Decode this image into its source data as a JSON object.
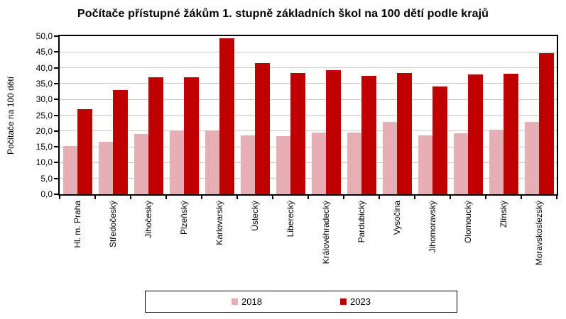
{
  "chart_data": {
    "type": "bar",
    "title": "Počítače přístupné žákům 1. stupně základních škol na 100 dětí podle krajů",
    "ylabel": "Počítače na 100 dětí",
    "xlabel": "",
    "categories": [
      "Hl. m. Praha",
      "Středočeský",
      "Jihočeský",
      "Plzeňský",
      "Karlovarský",
      "Ústecký",
      "Liberecký",
      "Královéhradecký",
      "Pardubický",
      "Vysočina",
      "Jihomoravský",
      "Olomoucký",
      "Zlínský",
      "Moravskoslezský"
    ],
    "series": [
      {
        "name": "2018",
        "color": "#E6AEB5",
        "values": [
          15.3,
          16.5,
          19.0,
          20.2,
          20.1,
          18.7,
          18.3,
          19.5,
          19.4,
          22.8,
          18.7,
          19.3,
          20.5,
          22.8
        ]
      },
      {
        "name": "2023",
        "color": "#C00000",
        "values": [
          27.0,
          32.9,
          37.1,
          37.0,
          49.4,
          41.5,
          38.4,
          39.2,
          37.4,
          38.4,
          34.1,
          38.0,
          38.2,
          44.6
        ]
      }
    ],
    "ylim": [
      0,
      50
    ],
    "ytick_step": 5,
    "ytick_format": "decimal-comma-1-place",
    "grid": true,
    "legend_position": "bottom-center-boxed",
    "x_label_rotation": "vertical-bottom-to-top",
    "colors": {
      "gridline": "#C9C9C9",
      "axis": "#000000",
      "text": "#000000",
      "background": "#FFFFFF"
    }
  }
}
